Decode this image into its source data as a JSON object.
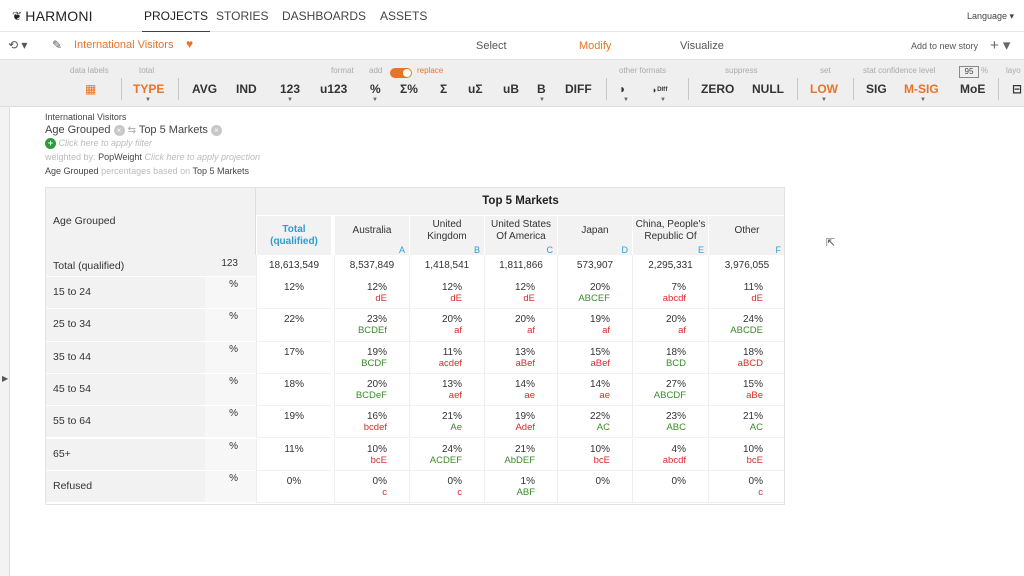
{
  "topnav": {
    "logo_text": "HARMONI",
    "tabs": [
      "PROJECTS",
      "STORIES",
      "DASHBOARDS",
      "ASSETS"
    ],
    "active_tab": "PROJECTS",
    "language_label": "Language ▾"
  },
  "toolbar": {
    "viz_name": "International Visitors",
    "modes": [
      "Select",
      "Modify",
      "Visualize"
    ],
    "active_mode": "Modify",
    "add_story_label": "Add to new story",
    "plus_label": "+ ▾",
    "accent_color": "#e8732a"
  },
  "ribbon": {
    "group_labels": {
      "data_labels": "data labels",
      "total": "total",
      "format": "format",
      "add": "add",
      "replace": "replace",
      "other_formats": "other formats",
      "suppress": "suppress",
      "set": "set",
      "stat_confidence": "stat confidence level",
      "confidence_value": "95",
      "percent": "%",
      "layout": "layo"
    },
    "buttons": {
      "type": "TYPE",
      "avg": "AVG",
      "ind": "IND",
      "n123": "123",
      "u123": "u123",
      "pct": "%",
      "sigma_pct": "Σ%",
      "sigma": "Σ",
      "u_sigma": "uΣ",
      "ub": "uB",
      "b": "B",
      "diff": "DIFF",
      "zero": "ZERO",
      "null": "NULL",
      "low": "LOW",
      "sig": "SIG",
      "msig": "M-SIG",
      "moe": "MoE"
    }
  },
  "meta": {
    "title": "International Visitors",
    "rows_chip": "Age Grouped",
    "cols_chip": "Top 5 Markets",
    "filter_hint": "Click here to apply filter",
    "weighted_label": "weighted by:",
    "weight_name": "PopWeight",
    "projection_hint": "Click here to apply projection",
    "pct_row": "Age Grouped",
    "pct_mid": "percentages based on",
    "pct_col": "Top 5 Markets"
  },
  "table": {
    "banner": "Top 5 Markets",
    "row_var": "Age Grouped",
    "columns": [
      {
        "label": "Total (qualified)",
        "letter": ""
      },
      {
        "label": "Australia",
        "letter": "A"
      },
      {
        "label": "United Kingdom",
        "letter": "B"
      },
      {
        "label": "United States Of America",
        "letter": "C"
      },
      {
        "label": "Japan",
        "letter": "D"
      },
      {
        "label": "China, People's Republic Of",
        "letter": "E"
      },
      {
        "label": "Other",
        "letter": "F"
      }
    ],
    "total_row": {
      "label": "Total (qualified)",
      "stat": "123",
      "values": [
        "18,613,549",
        "8,537,849",
        "1,418,541",
        "1,811,866",
        "573,907",
        "2,295,331",
        "3,976,055"
      ]
    },
    "rows": [
      {
        "label": "15 to 24",
        "stat": "%",
        "values": [
          "12%",
          "12%",
          "12%",
          "12%",
          "20%",
          "7%",
          "11%"
        ],
        "sigs": [
          "",
          "dE",
          "dE",
          "dE",
          "ABCEF",
          "abcdf",
          "dE"
        ],
        "sigcolors": [
          "",
          "r",
          "r",
          "r",
          "g",
          "r",
          "r"
        ]
      },
      {
        "label": "25 to 34",
        "stat": "%",
        "values": [
          "22%",
          "23%",
          "20%",
          "20%",
          "19%",
          "20%",
          "24%"
        ],
        "sigs": [
          "",
          "BCDEf",
          "af",
          "af",
          "af",
          "af",
          "ABCDE"
        ],
        "sigcolors": [
          "",
          "g",
          "r",
          "r",
          "r",
          "r",
          "g"
        ]
      },
      {
        "label": "35 to 44",
        "stat": "%",
        "values": [
          "17%",
          "19%",
          "11%",
          "13%",
          "15%",
          "18%",
          "18%"
        ],
        "sigs": [
          "",
          "BCDF",
          "acdef",
          "aBef",
          "aBef",
          "BCD",
          "aBCD"
        ],
        "sigcolors": [
          "",
          "g",
          "r",
          "r",
          "r",
          "g",
          "r"
        ]
      },
      {
        "label": "45 to 54",
        "stat": "%",
        "values": [
          "18%",
          "20%",
          "13%",
          "14%",
          "14%",
          "27%",
          "15%"
        ],
        "sigs": [
          "",
          "BCDeF",
          "aef",
          "ae",
          "ae",
          "ABCDF",
          "aBe"
        ],
        "sigcolors": [
          "",
          "g",
          "r",
          "r",
          "r",
          "g",
          "r"
        ]
      },
      {
        "label": "55 to 64",
        "stat": "%",
        "values": [
          "19%",
          "16%",
          "21%",
          "19%",
          "22%",
          "23%",
          "21%"
        ],
        "sigs": [
          "",
          "bcdef",
          "Ae",
          "Adef",
          "AC",
          "ABC",
          "AC"
        ],
        "sigcolors": [
          "",
          "r",
          "g",
          "r",
          "g",
          "g",
          "g"
        ]
      },
      {
        "label": "65+",
        "stat": "%",
        "values": [
          "11%",
          "10%",
          "24%",
          "21%",
          "10%",
          "4%",
          "10%"
        ],
        "sigs": [
          "",
          "bcE",
          "ACDEF",
          "AbDEF",
          "bcE",
          "abcdf",
          "bcE"
        ],
        "sigcolors": [
          "",
          "r",
          "g",
          "g",
          "r",
          "r",
          "r"
        ]
      },
      {
        "label": "Refused",
        "stat": "%",
        "values": [
          "0%",
          "0%",
          "0%",
          "1%",
          "0%",
          "0%",
          "0%"
        ],
        "sigs": [
          "",
          "c",
          "c",
          "ABF",
          "",
          "",
          "c"
        ],
        "sigcolors": [
          "",
          "r",
          "r",
          "g",
          "",
          "",
          "r"
        ]
      }
    ]
  }
}
